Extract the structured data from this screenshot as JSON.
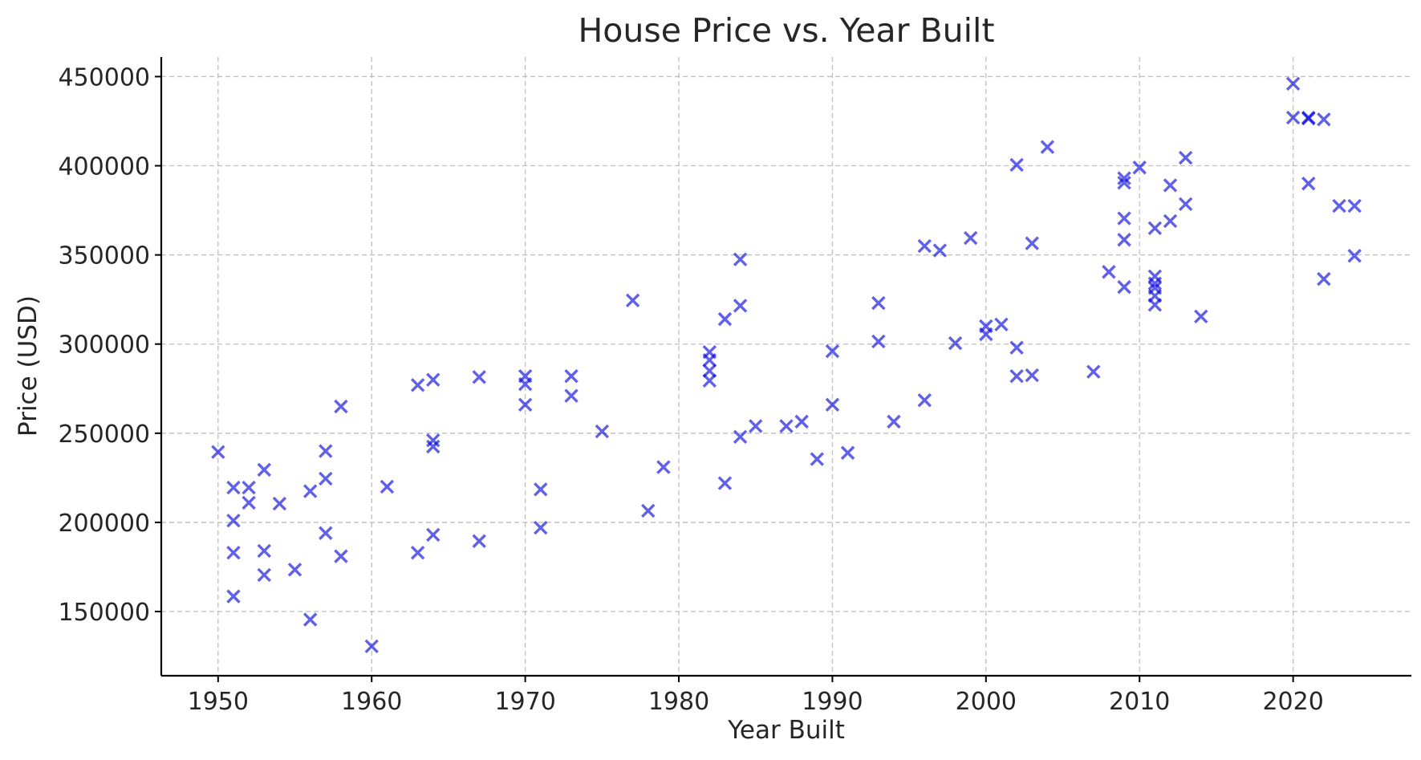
{
  "chart_data": {
    "type": "scatter",
    "title": "House Price vs. Year Built",
    "xlabel": "Year Built",
    "ylabel": "Price (USD)",
    "xlim": [
      1946.3,
      1927.7
    ],
    "xlim_note": "",
    "xrange": [
      1946.3,
      2027.7
    ],
    "ylim": [
      114000,
      461000
    ],
    "xticks": [
      1950,
      1960,
      1970,
      1980,
      1990,
      2000,
      2010,
      2020
    ],
    "yticks": [
      150000,
      200000,
      250000,
      300000,
      350000,
      400000,
      450000
    ],
    "xtick_labels": [
      "1950",
      "1960",
      "1970",
      "1980",
      "1990",
      "2000",
      "2010",
      "2020"
    ],
    "ytick_labels": [
      "150000",
      "200000",
      "250000",
      "300000",
      "350000",
      "400000",
      "450000"
    ],
    "grid": true,
    "marker": "x",
    "marker_color": "#0000dd",
    "points": [
      [
        1950,
        239500
      ],
      [
        1951,
        219500
      ],
      [
        1951,
        201000
      ],
      [
        1951,
        183000
      ],
      [
        1951,
        158500
      ],
      [
        1952,
        219500
      ],
      [
        1952,
        211000
      ],
      [
        1953,
        229500
      ],
      [
        1953,
        184000
      ],
      [
        1953,
        170500
      ],
      [
        1954,
        210500
      ],
      [
        1955,
        173500
      ],
      [
        1956,
        217500
      ],
      [
        1956,
        145500
      ],
      [
        1957,
        240000
      ],
      [
        1957,
        224500
      ],
      [
        1957,
        194000
      ],
      [
        1958,
        265000
      ],
      [
        1958,
        181000
      ],
      [
        1960,
        130500
      ],
      [
        1961,
        220000
      ],
      [
        1963,
        277000
      ],
      [
        1963,
        183000
      ],
      [
        1964,
        280000
      ],
      [
        1964,
        246000
      ],
      [
        1964,
        242500
      ],
      [
        1964,
        193000
      ],
      [
        1967,
        281500
      ],
      [
        1967,
        189500
      ],
      [
        1970,
        282000
      ],
      [
        1970,
        277500
      ],
      [
        1970,
        266000
      ],
      [
        1971,
        218500
      ],
      [
        1971,
        197000
      ],
      [
        1973,
        282000
      ],
      [
        1973,
        271000
      ],
      [
        1975,
        251000
      ],
      [
        1977,
        324500
      ],
      [
        1978,
        206500
      ],
      [
        1979,
        231000
      ],
      [
        1982,
        295500
      ],
      [
        1982,
        291000
      ],
      [
        1982,
        285000
      ],
      [
        1982,
        279500
      ],
      [
        1983,
        314000
      ],
      [
        1983,
        222000
      ],
      [
        1984,
        347500
      ],
      [
        1984,
        321500
      ],
      [
        1984,
        248000
      ],
      [
        1985,
        254000
      ],
      [
        1987,
        254000
      ],
      [
        1988,
        256500
      ],
      [
        1989,
        235500
      ],
      [
        1990,
        296000
      ],
      [
        1990,
        266000
      ],
      [
        1991,
        239000
      ],
      [
        1993,
        323000
      ],
      [
        1993,
        301500
      ],
      [
        1994,
        256500
      ],
      [
        1996,
        355000
      ],
      [
        1996,
        268500
      ],
      [
        1997,
        352500
      ],
      [
        1998,
        300500
      ],
      [
        1999,
        359500
      ],
      [
        2000,
        310000
      ],
      [
        2000,
        305500
      ],
      [
        2001,
        311000
      ],
      [
        2002,
        400500
      ],
      [
        2002,
        298000
      ],
      [
        2002,
        282000
      ],
      [
        2003,
        356500
      ],
      [
        2003,
        282500
      ],
      [
        2004,
        410500
      ],
      [
        2007,
        284500
      ],
      [
        2008,
        340500
      ],
      [
        2009,
        393000
      ],
      [
        2009,
        390500
      ],
      [
        2009,
        370500
      ],
      [
        2009,
        358500
      ],
      [
        2009,
        332000
      ],
      [
        2010,
        399000
      ],
      [
        2011,
        365000
      ],
      [
        2011,
        338000
      ],
      [
        2011,
        334000
      ],
      [
        2011,
        331500
      ],
      [
        2011,
        327000
      ],
      [
        2011,
        322000
      ],
      [
        2012,
        389000
      ],
      [
        2012,
        369000
      ],
      [
        2013,
        404500
      ],
      [
        2013,
        378500
      ],
      [
        2014,
        315500
      ],
      [
        2020,
        446000
      ],
      [
        2020,
        427000
      ],
      [
        2021,
        427000
      ],
      [
        2021,
        426500
      ],
      [
        2021,
        390000
      ],
      [
        2022,
        426000
      ],
      [
        2022,
        336500
      ],
      [
        2023,
        377500
      ],
      [
        2024,
        377500
      ],
      [
        2024,
        349500
      ]
    ]
  }
}
